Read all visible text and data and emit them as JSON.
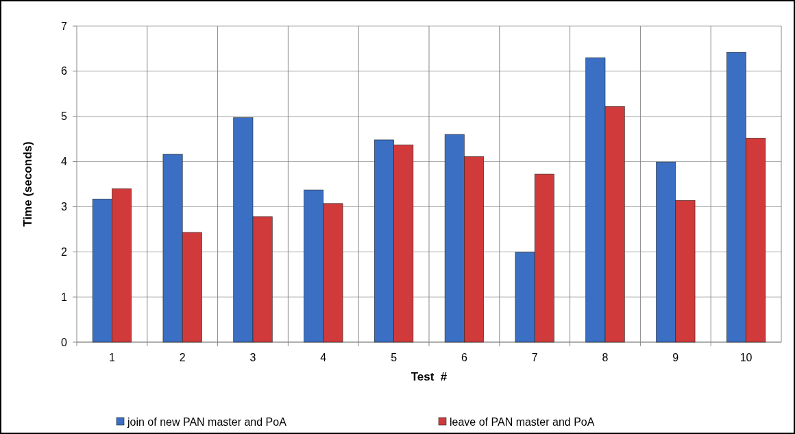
{
  "chart_data": {
    "type": "bar",
    "xlabel": "Test  #",
    "ylabel": "Time (seconds)",
    "categories": [
      "1",
      "2",
      "3",
      "4",
      "5",
      "6",
      "7",
      "8",
      "9",
      "10"
    ],
    "series": [
      {
        "name": "join of new PAN master and PoA",
        "color": "#3a6fc4",
        "values": [
          3.17,
          4.16,
          4.97,
          3.37,
          4.48,
          4.6,
          1.99,
          6.3,
          3.99,
          6.42
        ]
      },
      {
        "name": "leave of PAN master and PoA",
        "color": "#d03a3a",
        "values": [
          3.4,
          2.43,
          2.78,
          3.07,
          4.37,
          4.11,
          3.72,
          5.22,
          3.14,
          4.52
        ]
      }
    ],
    "ylim": [
      0,
      7
    ],
    "yticks": [
      0,
      1,
      2,
      3,
      4,
      5,
      6,
      7
    ],
    "grid": true,
    "legend": "bottom"
  }
}
